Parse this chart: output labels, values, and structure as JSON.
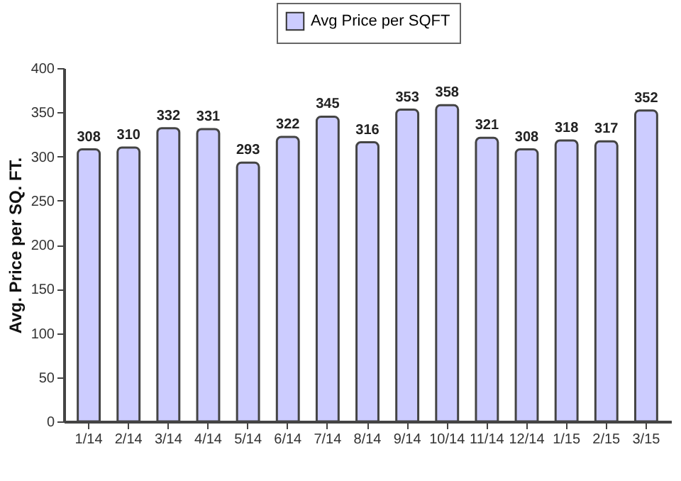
{
  "chart_data": {
    "type": "bar",
    "ylabel": "Avg. Price per SQ. FT.",
    "categories": [
      "1/14",
      "2/14",
      "3/14",
      "4/14",
      "5/14",
      "6/14",
      "7/14",
      "8/14",
      "9/14",
      "10/14",
      "11/14",
      "12/14",
      "1/15",
      "2/15",
      "3/15"
    ],
    "series": [
      {
        "name": "Avg Price per SQFT",
        "color": "#ccccff",
        "values": [
          308,
          310,
          332,
          331,
          293,
          322,
          345,
          316,
          353,
          358,
          321,
          308,
          318,
          317,
          352
        ]
      }
    ],
    "ylim": [
      0,
      400
    ],
    "yticks": [
      0,
      50,
      100,
      150,
      200,
      250,
      300,
      350,
      400
    ],
    "grid": false,
    "legend": "top",
    "data_labels": true
  }
}
